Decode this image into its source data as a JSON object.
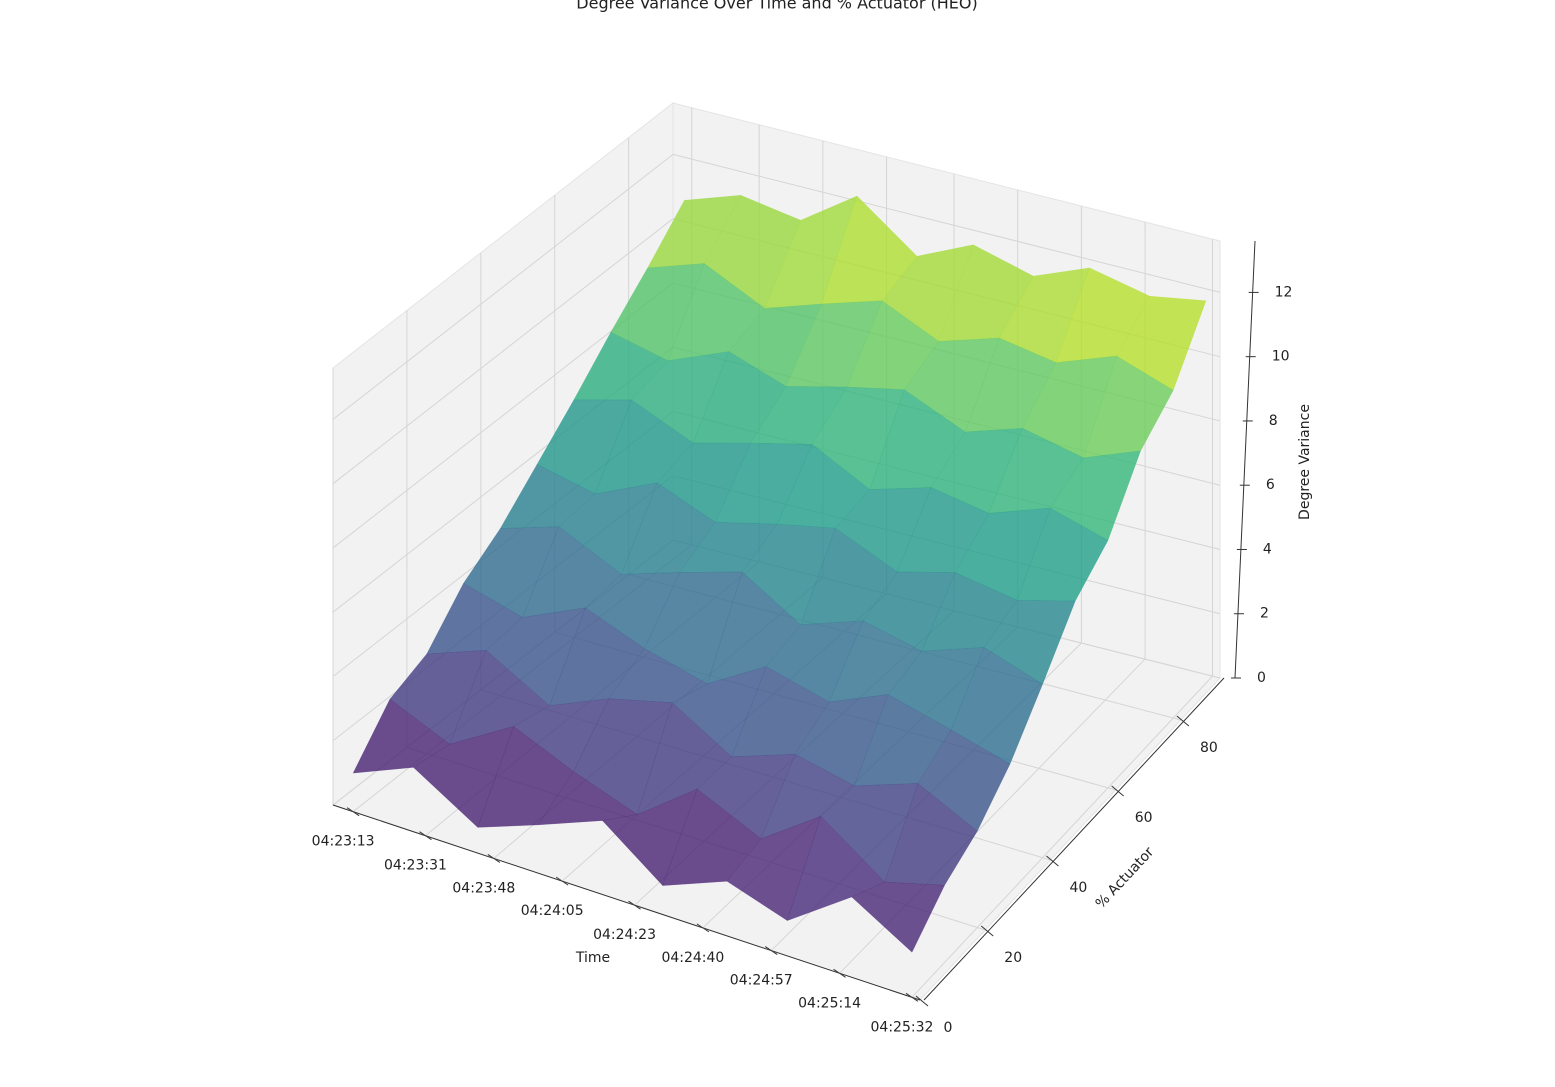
{
  "chart_data": {
    "type": "surface3d",
    "title": "Degree Variance Over Time and % Actuator (HEO)",
    "xlabel": "Time",
    "ylabel": "% Actuator",
    "zlabel": "Degree Variance",
    "colormap": "viridis",
    "alpha": 0.8,
    "x": [
      15793,
      15808,
      15824,
      15839,
      15855,
      15870,
      15886,
      15901,
      15917,
      15932
    ],
    "y": [
      0,
      10,
      20,
      30,
      40,
      50,
      60,
      70,
      80,
      90
    ],
    "z": [
      [
        1.2,
        2.0,
        0.8,
        1.5,
        2.3,
        0.9,
        1.7,
        1.1,
        2.5,
        1.4
      ],
      [
        2.6,
        1.8,
        3.0,
        2.2,
        1.5,
        2.9,
        2.0,
        3.3,
        1.9,
        2.4
      ],
      [
        3.1,
        3.8,
        2.7,
        3.5,
        4.0,
        2.9,
        3.6,
        3.2,
        3.9,
        3.0
      ],
      [
        4.4,
        3.9,
        4.8,
        4.1,
        3.6,
        4.7,
        4.2,
        5.0,
        4.5,
        4.0
      ],
      [
        5.2,
        5.8,
        4.9,
        5.5,
        6.1,
        5.0,
        5.7,
        5.3,
        6.0,
        5.4
      ],
      [
        6.3,
        5.9,
        6.8,
        6.1,
        6.6,
        7.0,
        6.2,
        6.7,
        6.4,
        6.9
      ],
      [
        7.4,
        7.9,
        7.1,
        7.6,
        8.1,
        7.2,
        7.8,
        7.5,
        8.2,
        7.7
      ],
      [
        8.6,
        8.2,
        9.0,
        8.4,
        8.9,
        9.3,
        8.5,
        9.1,
        8.7,
        9.4
      ],
      [
        9.7,
        10.3,
        9.4,
        10.0,
        10.6,
        9.8,
        10.4,
        10.1,
        10.8,
        10.2
      ],
      [
        10.9,
        11.5,
        11.2,
        12.4,
        11.0,
        11.8,
        11.3,
        12.0,
        11.6,
        11.9
      ]
    ],
    "xlim": [
      15788,
      15934
    ],
    "xticks": [
      {
        "value": 15793,
        "label": "04:23:13"
      },
      {
        "value": 15811,
        "label": "04:23:31"
      },
      {
        "value": 15828,
        "label": "04:23:48"
      },
      {
        "value": 15845,
        "label": "04:24:05"
      },
      {
        "value": 15863,
        "label": "04:24:23"
      },
      {
        "value": 15880,
        "label": "04:24:40"
      },
      {
        "value": 15897,
        "label": "04:24:57"
      },
      {
        "value": 15914,
        "label": "04:25:14"
      },
      {
        "value": 15932,
        "label": "04:25:32"
      }
    ],
    "ylim": [
      0,
      92
    ],
    "yticks": [
      0,
      20,
      40,
      60,
      80
    ],
    "zlim": [
      0,
      13.6
    ],
    "zticks": [
      0,
      2,
      4,
      6,
      8,
      10,
      12
    ],
    "grid": true
  }
}
